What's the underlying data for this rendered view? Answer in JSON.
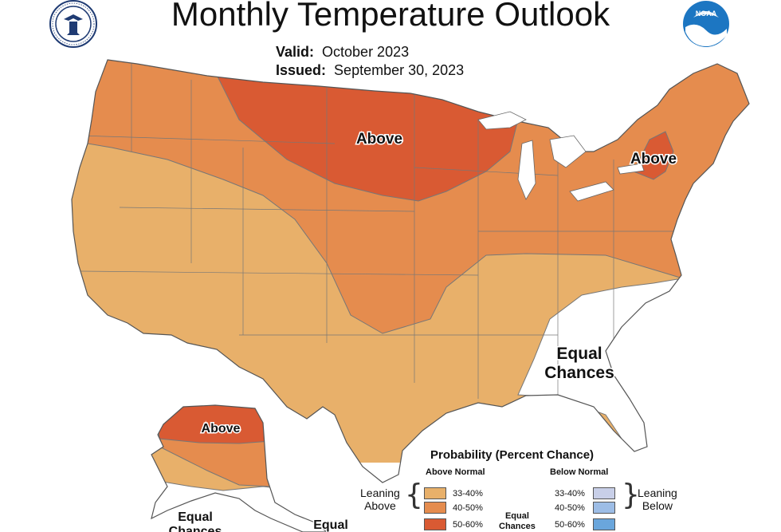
{
  "title": "Monthly Temperature Outlook",
  "valid_label": "Valid:",
  "valid_value": "October 2023",
  "issued_label": "Issued:",
  "issued_value": "September 30, 2023",
  "colors": {
    "above_33_40": "#e8b06a",
    "above_40_50": "#e58c4e",
    "above_50_60": "#d95a33",
    "below_33_40": "#c8cfe8",
    "below_40_50": "#9dbde6",
    "below_50_60": "#6aa6dc",
    "equal_chances": "#ffffff",
    "boundary": "#666666"
  },
  "map_labels": {
    "north_central": "Above",
    "northeast": "Above",
    "southeast_line1": "Equal",
    "southeast_line2": "Chances",
    "alaska_north": "Above",
    "alaska_south_line1": "Equal",
    "alaska_south_line2": "Chances",
    "alaska_panhandle": "Equal"
  },
  "legend": {
    "title": "Probability (Percent Chance)",
    "above_header": "Above Normal",
    "below_header": "Below Normal",
    "above_rows": [
      "33-40%",
      "40-50%",
      "50-60%"
    ],
    "below_rows": [
      "33-40%",
      "40-50%",
      "50-60%"
    ],
    "leaning_above_line1": "Leaning",
    "leaning_above_line2": "Above",
    "leaning_below_line1": "Leaning",
    "leaning_below_line2": "Below",
    "equal_line1": "Equal",
    "equal_line2": "Chances"
  }
}
